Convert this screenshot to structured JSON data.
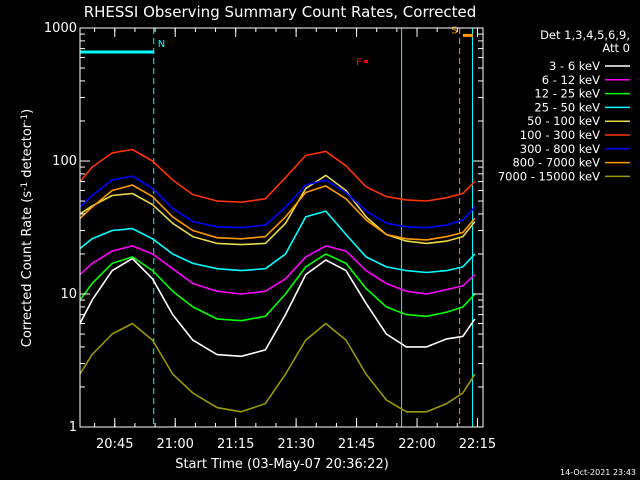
{
  "chart_data": {
    "type": "line",
    "title": "RHESSI Observing Summary Count Rates, Corrected",
    "xlabel": "Start Time (03-May-07 20:36:22)",
    "ylabel": "Corrected Count Rate (s⁻¹ detector⁻¹)",
    "ylabel_base": "Corrected Count Rate (s",
    "ylabel_sup1": "-1",
    "ylabel_mid": " detector",
    "ylabel_sup2": "-1",
    "ylabel_end": ")",
    "yscale": "log",
    "ylim": [
      1,
      1000
    ],
    "xlim_minutes": [
      0,
      100
    ],
    "x_unit": "minutes after 20:36:22",
    "y_ticks": [
      {
        "value": 1,
        "label": "1"
      },
      {
        "value": 10,
        "label": "10"
      },
      {
        "value": 100,
        "label": "100"
      },
      {
        "value": 1000,
        "label": "1000"
      }
    ],
    "x_ticks": [
      {
        "minutes": 8.63,
        "label": "20:45"
      },
      {
        "minutes": 23.63,
        "label": "21:00"
      },
      {
        "minutes": 38.63,
        "label": "21:15"
      },
      {
        "minutes": 53.63,
        "label": "21:30"
      },
      {
        "minutes": 68.63,
        "label": "21:45"
      },
      {
        "minutes": 83.63,
        "label": "22:00"
      },
      {
        "minutes": 98.63,
        "label": "22:15"
      }
    ],
    "legend": {
      "placement": "right",
      "header_lines": [
        "Det 1,3,4,5,6,9,",
        "Att 0"
      ]
    },
    "series": [
      {
        "name": "3 - 6 keV",
        "color": "#ffffff",
        "x": [
          0,
          3,
          8,
          13,
          18,
          23,
          28,
          34,
          40,
          46,
          51,
          56,
          61,
          66,
          71,
          76,
          81,
          86,
          91,
          95,
          98
        ],
        "y": [
          6,
          9,
          15,
          18.5,
          13,
          7,
          4.5,
          3.5,
          3.4,
          3.8,
          7,
          14,
          18,
          15,
          8.5,
          5,
          4,
          4,
          4.6,
          4.8,
          6.5
        ]
      },
      {
        "name": "6 - 12 keV",
        "color": "#ff00ff",
        "x": [
          0,
          3,
          8,
          13,
          18,
          23,
          28,
          34,
          40,
          46,
          51,
          56,
          61,
          66,
          71,
          76,
          81,
          86,
          91,
          95,
          98
        ],
        "y": [
          14,
          17,
          21,
          23,
          20,
          15.5,
          12,
          10.5,
          10,
          10.5,
          13,
          19,
          23,
          21,
          15,
          12,
          10.5,
          10,
          10.8,
          11.5,
          14
        ]
      },
      {
        "name": "12 - 25 keV",
        "color": "#00ff00",
        "x": [
          0,
          3,
          8,
          13,
          18,
          23,
          28,
          34,
          40,
          46,
          51,
          56,
          61,
          66,
          71,
          76,
          81,
          86,
          91,
          95,
          98
        ],
        "y": [
          9,
          12,
          17,
          19,
          15,
          10.5,
          8,
          6.5,
          6.3,
          6.8,
          10,
          16,
          20,
          17,
          11,
          8,
          7,
          6.8,
          7.3,
          8,
          10
        ]
      },
      {
        "name": "25 - 50 keV",
        "color": "#00ffff",
        "x": [
          0,
          3,
          8,
          13,
          18,
          23,
          28,
          34,
          40,
          46,
          51,
          56,
          61,
          66,
          71,
          76,
          81,
          86,
          91,
          95,
          98
        ],
        "y": [
          22,
          26,
          30,
          31,
          26,
          20,
          17,
          15.5,
          15,
          15.5,
          20,
          38,
          42,
          28,
          19,
          16,
          15,
          14.5,
          15,
          16,
          20
        ]
      },
      {
        "name": "50 - 100 keV",
        "color": "#e8d84a",
        "x": [
          0,
          3,
          8,
          13,
          18,
          23,
          28,
          34,
          40,
          46,
          51,
          56,
          61,
          66,
          71,
          76,
          81,
          86,
          91,
          95,
          98
        ],
        "y": [
          40,
          46,
          55,
          57,
          47,
          34,
          27,
          24,
          23.5,
          24,
          34,
          62,
          78,
          60,
          38,
          28,
          25,
          24,
          25,
          27,
          35
        ]
      },
      {
        "name": "100 - 300 keV",
        "color": "#ff3300",
        "x": [
          0,
          3,
          8,
          13,
          18,
          23,
          28,
          34,
          40,
          46,
          51,
          56,
          61,
          66,
          71,
          76,
          81,
          86,
          91,
          95,
          98
        ],
        "y": [
          70,
          90,
          115,
          122,
          100,
          72,
          56,
          50,
          49,
          52,
          75,
          110,
          118,
          92,
          64,
          54,
          51,
          50,
          53,
          57,
          70
        ]
      },
      {
        "name": "300 - 800 keV",
        "color": "#0000ff",
        "x": [
          0,
          3,
          8,
          13,
          18,
          23,
          28,
          34,
          40,
          46,
          51,
          56,
          61,
          66,
          71,
          76,
          81,
          86,
          91,
          95,
          98
        ],
        "y": [
          45,
          55,
          72,
          77,
          62,
          44,
          35,
          32,
          31.5,
          33,
          45,
          66,
          72,
          58,
          42,
          34,
          32,
          31.5,
          33,
          36,
          45
        ]
      },
      {
        "name": "800 - 7000 keV",
        "color": "#ff9900",
        "x": [
          0,
          3,
          8,
          13,
          18,
          23,
          28,
          34,
          40,
          46,
          51,
          56,
          61,
          66,
          71,
          76,
          81,
          86,
          91,
          95,
          98
        ],
        "y": [
          37,
          45,
          60,
          66,
          54,
          38,
          30,
          26.5,
          26,
          27,
          38,
          58,
          65,
          52,
          36,
          28,
          26,
          25.5,
          27,
          29,
          37
        ]
      },
      {
        "name": "7000 - 15000 keV",
        "color": "#999900",
        "x": [
          0,
          3,
          8,
          13,
          18,
          23,
          28,
          34,
          40,
          46,
          51,
          56,
          61,
          66,
          71,
          76,
          81,
          86,
          91,
          95,
          98
        ],
        "y": [
          2.5,
          3.5,
          5,
          6,
          4.5,
          2.5,
          1.8,
          1.4,
          1.3,
          1.5,
          2.5,
          4.5,
          6,
          4.5,
          2.5,
          1.6,
          1.3,
          1.3,
          1.5,
          1.8,
          2.5
        ]
      }
    ],
    "markers": [
      {
        "label": "N",
        "color": "#00ffff",
        "line_minutes": 18.3,
        "band_minutes": [
          0,
          18.3
        ],
        "band_value": 660
      },
      {
        "label": "F",
        "color": "#ff0000",
        "band_minutes": [
          70.5,
          71.5
        ],
        "band_value": 560
      },
      {
        "label": "S",
        "color": "#ff9900",
        "line_minutes": 94.2,
        "band_minutes": [
          95,
          97.5
        ],
        "band_value": 880
      }
    ],
    "night_lines_minutes": [
      79.8,
      97.4
    ],
    "grid": false
  },
  "footer": {
    "timestamp": "14-Oct-2021 23:43"
  }
}
